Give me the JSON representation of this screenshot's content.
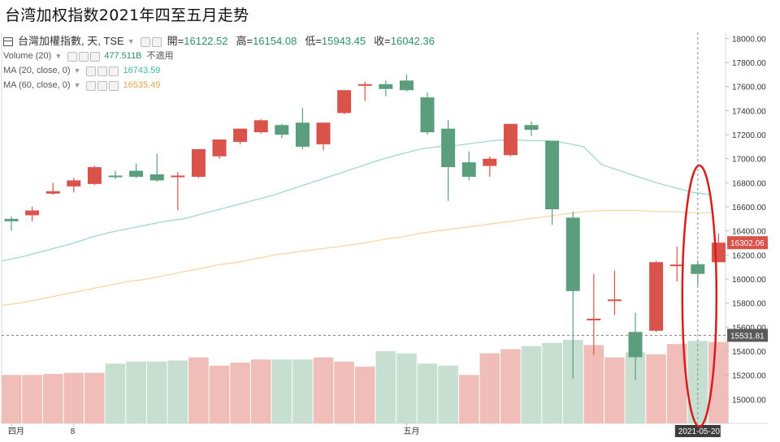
{
  "title": "台湾加权指数2021年四至五月走势",
  "legend": {
    "symbol": "台灣加權指數, 天, TSE",
    "open_label": "開=",
    "open": "16122.52",
    "high_label": "高=",
    "high": "16154.08",
    "low_label": "低=",
    "low": "15943.45",
    "close_label": "收=",
    "close": "16042.36",
    "volume_label": "Volume (20)",
    "volume_value": "477.511B",
    "volume_extra": "不適用",
    "ma20_label": "MA (20, close, 0)",
    "ma20_value": "16743.59",
    "ma60_label": "MA (60, close, 0)",
    "ma60_value": "16535.49"
  },
  "colors": {
    "up": "#d9534a",
    "down": "#5b9e7e",
    "vol_up": "#f1bdb8",
    "vol_down": "#c6dfd1",
    "ma20": "#9fd8cc",
    "ma60": "#f6d7a6",
    "ellipse": "#d91c1c"
  },
  "chart_data": {
    "type": "candlestick",
    "ylim": [
      14800,
      18050
    ],
    "y_ticks": [
      "15000.00",
      "15200.00",
      "15400.00",
      "15600.00",
      "15800.00",
      "16000.00",
      "16200.00",
      "16400.00",
      "16600.00",
      "16800.00",
      "17000.00",
      "17200.00",
      "17400.00",
      "17600.00",
      "17800.00",
      "18000.00"
    ],
    "x_tick_labels": [
      {
        "label": "四月",
        "index": 0
      },
      {
        "label": "8",
        "index": 3
      },
      {
        "label": "五月",
        "index": 19
      }
    ],
    "last_price_tag": "16302.06",
    "ref_price_tag": "15531.81",
    "crosshair_date": "2021-05-20",
    "candles": [
      {
        "o": 16500,
        "h": 16520,
        "l": 16400,
        "c": 16480
      },
      {
        "o": 16530,
        "h": 16600,
        "l": 16480,
        "c": 16570
      },
      {
        "o": 16710,
        "h": 16800,
        "l": 16700,
        "c": 16730
      },
      {
        "o": 16770,
        "h": 16840,
        "l": 16720,
        "c": 16820
      },
      {
        "o": 16790,
        "h": 16940,
        "l": 16780,
        "c": 16930
      },
      {
        "o": 16860,
        "h": 16900,
        "l": 16830,
        "c": 16850
      },
      {
        "o": 16900,
        "h": 16960,
        "l": 16840,
        "c": 16850
      },
      {
        "o": 16870,
        "h": 17040,
        "l": 16810,
        "c": 16820
      },
      {
        "o": 16860,
        "h": 16890,
        "l": 16570,
        "c": 16860
      },
      {
        "o": 16850,
        "h": 17080,
        "l": 16840,
        "c": 17080
      },
      {
        "o": 17020,
        "h": 17160,
        "l": 17000,
        "c": 17160
      },
      {
        "o": 17140,
        "h": 17250,
        "l": 17120,
        "c": 17250
      },
      {
        "o": 17220,
        "h": 17330,
        "l": 17210,
        "c": 17320
      },
      {
        "o": 17280,
        "h": 17290,
        "l": 17170,
        "c": 17200
      },
      {
        "o": 17300,
        "h": 17420,
        "l": 17080,
        "c": 17100
      },
      {
        "o": 17120,
        "h": 17300,
        "l": 17070,
        "c": 17300
      },
      {
        "o": 17380,
        "h": 17570,
        "l": 17370,
        "c": 17570
      },
      {
        "o": 17610,
        "h": 17640,
        "l": 17480,
        "c": 17620
      },
      {
        "o": 17620,
        "h": 17650,
        "l": 17520,
        "c": 17580
      },
      {
        "o": 17650,
        "h": 17700,
        "l": 17560,
        "c": 17570
      },
      {
        "o": 17510,
        "h": 17550,
        "l": 17200,
        "c": 17220
      },
      {
        "o": 17250,
        "h": 17320,
        "l": 16650,
        "c": 16930
      },
      {
        "o": 16970,
        "h": 17060,
        "l": 16820,
        "c": 16850
      },
      {
        "o": 16940,
        "h": 17020,
        "l": 16850,
        "c": 17000
      },
      {
        "o": 17030,
        "h": 17290,
        "l": 17020,
        "c": 17290
      },
      {
        "o": 17280,
        "h": 17310,
        "l": 17190,
        "c": 17240
      },
      {
        "o": 17150,
        "h": 17150,
        "l": 16450,
        "c": 16580
      },
      {
        "o": 16510,
        "h": 16560,
        "l": 15170,
        "c": 15900
      },
      {
        "o": 15670,
        "h": 16040,
        "l": 15370,
        "c": 15670
      },
      {
        "o": 15820,
        "h": 16070,
        "l": 15700,
        "c": 15830
      },
      {
        "o": 15560,
        "h": 15720,
        "l": 15160,
        "c": 15350
      },
      {
        "o": 15570,
        "h": 16150,
        "l": 15560,
        "c": 16140
      },
      {
        "o": 16110,
        "h": 16270,
        "l": 15980,
        "c": 16120
      },
      {
        "o": 16122.52,
        "h": 16154.08,
        "l": 15943.45,
        "c": 16042.36
      },
      {
        "o": 16140,
        "h": 16380,
        "l": 16140,
        "c": 16302.06
      }
    ],
    "volume_direction": [
      "up",
      "up",
      "up",
      "up",
      "up",
      "down",
      "down",
      "down",
      "down",
      "up",
      "up",
      "up",
      "up",
      "down",
      "down",
      "up",
      "up",
      "up",
      "down",
      "down",
      "down",
      "down",
      "up",
      "up",
      "up",
      "down",
      "down",
      "down",
      "up",
      "up",
      "down",
      "up",
      "up",
      "down",
      "up"
    ],
    "volume_relative": [
      0.47,
      0.47,
      0.48,
      0.49,
      0.49,
      0.58,
      0.6,
      0.6,
      0.61,
      0.64,
      0.56,
      0.59,
      0.62,
      0.62,
      0.62,
      0.64,
      0.6,
      0.55,
      0.7,
      0.68,
      0.58,
      0.56,
      0.47,
      0.68,
      0.72,
      0.75,
      0.78,
      0.81,
      0.76,
      0.64,
      0.69,
      0.67,
      0.77,
      0.8,
      0.79
    ],
    "ma20": [
      16150,
      16180,
      16220,
      16260,
      16300,
      16350,
      16390,
      16420,
      16450,
      16480,
      16500,
      16540,
      16580,
      16620,
      16660,
      16700,
      16750,
      16800,
      16850,
      16900,
      16950,
      17000,
      17040,
      17080,
      17100,
      17110,
      17130,
      17150,
      17160,
      17150,
      17150,
      17130,
      17100,
      16950,
      16900,
      16850,
      16800,
      16760,
      16720,
      16700
    ],
    "ma60": [
      15780,
      15800,
      15830,
      15860,
      15890,
      15920,
      15950,
      15980,
      16000,
      16030,
      16060,
      16090,
      16120,
      16140,
      16170,
      16200,
      16220,
      16240,
      16260,
      16280,
      16300,
      16330,
      16350,
      16380,
      16400,
      16420,
      16440,
      16460,
      16480,
      16500,
      16520,
      16540,
      16560,
      16570,
      16570,
      16570,
      16560,
      16560,
      16550,
      16550
    ]
  }
}
